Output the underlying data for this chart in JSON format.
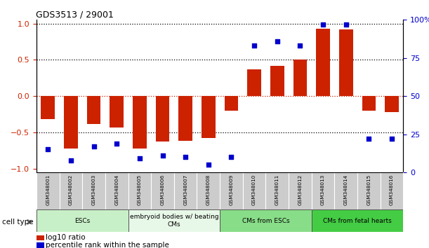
{
  "title": "GDS3513 / 29001",
  "samples": [
    "GSM348001",
    "GSM348002",
    "GSM348003",
    "GSM348004",
    "GSM348005",
    "GSM348006",
    "GSM348007",
    "GSM348008",
    "GSM348009",
    "GSM348010",
    "GSM348011",
    "GSM348012",
    "GSM348013",
    "GSM348014",
    "GSM348015",
    "GSM348016"
  ],
  "log10_ratio": [
    -0.32,
    -0.72,
    -0.38,
    -0.43,
    -0.72,
    -0.63,
    -0.62,
    -0.58,
    -0.2,
    0.37,
    0.42,
    0.5,
    0.93,
    0.92,
    -0.2,
    -0.22
  ],
  "percentile_rank": [
    15,
    8,
    17,
    19,
    9,
    11,
    10,
    5,
    10,
    83,
    86,
    83,
    97,
    97,
    22,
    22
  ],
  "cell_type_groups": [
    {
      "label": "ESCs",
      "start": 0,
      "end": 3,
      "color": "#c8f0c8"
    },
    {
      "label": "embryoid bodies w/ beating\nCMs",
      "start": 4,
      "end": 7,
      "color": "#e8f8e8"
    },
    {
      "label": "CMs from ESCs",
      "start": 8,
      "end": 11,
      "color": "#88dd88"
    },
    {
      "label": "CMs from fetal hearts",
      "start": 12,
      "end": 15,
      "color": "#44cc44"
    }
  ],
  "bar_color": "#cc2200",
  "dot_color": "#0000cc",
  "left_ylim": [
    -1.05,
    1.05
  ],
  "right_ylim": [
    0,
    100
  ],
  "left_yticks": [
    -1,
    -0.5,
    0,
    0.5,
    1
  ],
  "right_yticks": [
    0,
    25,
    50,
    75,
    100
  ],
  "right_yticklabels": [
    "0",
    "25",
    "50",
    "75",
    "100%"
  ]
}
